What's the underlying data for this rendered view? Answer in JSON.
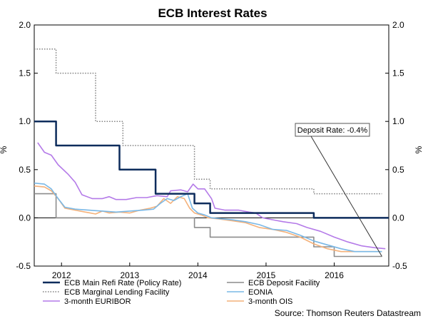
{
  "chart_data": {
    "type": "line",
    "title": "ECB Interest Rates",
    "ylabel_left": "%",
    "ylabel_right": "%",
    "ylim": [
      -0.5,
      2.0
    ],
    "yticks": [
      "2.0",
      "1.5",
      "1.0",
      "0.5",
      "0.0",
      "-0.5"
    ],
    "yticks_right": [
      "2.0",
      "1.5",
      "1.0",
      "0.5",
      "0.0",
      "-0.5"
    ],
    "xlim": [
      2011.6,
      2016.8
    ],
    "xticks": [
      {
        "label": "2012",
        "x": 2012.0
      },
      {
        "label": "2013",
        "x": 2013.0
      },
      {
        "label": "2014",
        "x": 2014.0
      },
      {
        "label": "2015",
        "x": 2015.0
      },
      {
        "label": "2016",
        "x": 2016.0
      }
    ],
    "grid": false,
    "legend_position": "bottom",
    "annotation": {
      "text": "Deposit Rate: -0.4%",
      "x": 2016.7,
      "y": -0.4
    },
    "source": "Source: Thomson Reuters Datastream",
    "series": [
      {
        "name": "ECB Main Refi Rate (Policy Rate)",
        "color": "#0d2c5c",
        "style": "solid-thick",
        "step": true,
        "points": [
          [
            2011.6,
            1.0
          ],
          [
            2011.92,
            1.0
          ],
          [
            2011.92,
            0.75
          ],
          [
            2012.85,
            0.75
          ],
          [
            2012.85,
            0.5
          ],
          [
            2013.38,
            0.5
          ],
          [
            2013.38,
            0.25
          ],
          [
            2013.95,
            0.25
          ],
          [
            2013.95,
            0.15
          ],
          [
            2014.18,
            0.15
          ],
          [
            2014.18,
            0.05
          ],
          [
            2015.7,
            0.05
          ],
          [
            2015.7,
            0.0
          ],
          [
            2016.8,
            0.0
          ]
        ]
      },
      {
        "name": "ECB Marginal Lending Facility",
        "color": "#7f7f7f",
        "style": "dotted",
        "step": true,
        "points": [
          [
            2011.6,
            1.75
          ],
          [
            2011.92,
            1.75
          ],
          [
            2011.92,
            1.5
          ],
          [
            2012.5,
            1.5
          ],
          [
            2012.5,
            1.0
          ],
          [
            2012.9,
            1.0
          ],
          [
            2012.9,
            0.75
          ],
          [
            2013.38,
            0.75
          ],
          [
            2013.38,
            0.75
          ],
          [
            2013.95,
            0.75
          ],
          [
            2013.95,
            0.4
          ],
          [
            2014.18,
            0.4
          ],
          [
            2014.18,
            0.3
          ],
          [
            2015.7,
            0.3
          ],
          [
            2015.7,
            0.25
          ],
          [
            2016.7,
            0.25
          ]
        ]
      },
      {
        "name": "3-month EURIBOR",
        "color": "#b47ae8",
        "style": "solid",
        "points": [
          [
            2011.65,
            0.78
          ],
          [
            2011.75,
            0.68
          ],
          [
            2011.85,
            0.65
          ],
          [
            2011.95,
            0.55
          ],
          [
            2012.1,
            0.45
          ],
          [
            2012.2,
            0.37
          ],
          [
            2012.3,
            0.24
          ],
          [
            2012.45,
            0.2
          ],
          [
            2012.6,
            0.2
          ],
          [
            2012.7,
            0.22
          ],
          [
            2012.8,
            0.19
          ],
          [
            2012.95,
            0.19
          ],
          [
            2013.1,
            0.21
          ],
          [
            2013.25,
            0.21
          ],
          [
            2013.4,
            0.23
          ],
          [
            2013.55,
            0.22
          ],
          [
            2013.6,
            0.28
          ],
          [
            2013.75,
            0.29
          ],
          [
            2013.85,
            0.27
          ],
          [
            2013.93,
            0.35
          ],
          [
            2014.0,
            0.3
          ],
          [
            2014.1,
            0.3
          ],
          [
            2014.2,
            0.2
          ],
          [
            2014.25,
            0.1
          ],
          [
            2014.4,
            0.08
          ],
          [
            2014.6,
            0.08
          ],
          [
            2014.75,
            0.06
          ],
          [
            2014.85,
            0.05
          ],
          [
            2014.95,
            0.0
          ],
          [
            2015.1,
            -0.02
          ],
          [
            2015.25,
            -0.04
          ],
          [
            2015.45,
            -0.06
          ],
          [
            2015.6,
            -0.1
          ],
          [
            2015.8,
            -0.14
          ],
          [
            2016.0,
            -0.2
          ],
          [
            2016.2,
            -0.25
          ],
          [
            2016.4,
            -0.29
          ],
          [
            2016.6,
            -0.31
          ],
          [
            2016.75,
            -0.32
          ]
        ]
      },
      {
        "name": "ECB Deposit Facility",
        "color": "#8c8c8c",
        "style": "solid",
        "step": true,
        "points": [
          [
            2011.6,
            0.25
          ],
          [
            2011.92,
            0.25
          ],
          [
            2011.92,
            0.0
          ],
          [
            2013.95,
            0.0
          ],
          [
            2013.95,
            -0.1
          ],
          [
            2014.18,
            -0.1
          ],
          [
            2014.18,
            -0.2
          ],
          [
            2015.7,
            -0.2
          ],
          [
            2015.7,
            -0.3
          ],
          [
            2016.0,
            -0.3
          ],
          [
            2016.0,
            -0.4
          ],
          [
            2016.7,
            -0.4
          ]
        ]
      },
      {
        "name": "EONIA",
        "color": "#7ab8e6",
        "style": "solid",
        "points": [
          [
            2011.6,
            0.36
          ],
          [
            2011.75,
            0.35
          ],
          [
            2011.85,
            0.3
          ],
          [
            2011.95,
            0.2
          ],
          [
            2012.05,
            0.11
          ],
          [
            2012.2,
            0.09
          ],
          [
            2012.4,
            0.08
          ],
          [
            2012.6,
            0.07
          ],
          [
            2012.8,
            0.06
          ],
          [
            2013.0,
            0.07
          ],
          [
            2013.2,
            0.08
          ],
          [
            2013.35,
            0.09
          ],
          [
            2013.45,
            0.15
          ],
          [
            2013.55,
            0.2
          ],
          [
            2013.65,
            0.18
          ],
          [
            2013.75,
            0.22
          ],
          [
            2013.85,
            0.25
          ],
          [
            2013.92,
            0.1
          ],
          [
            2014.0,
            0.05
          ],
          [
            2014.1,
            0.03
          ],
          [
            2014.2,
            0.0
          ],
          [
            2014.35,
            -0.01
          ],
          [
            2014.5,
            -0.02
          ],
          [
            2014.7,
            -0.04
          ],
          [
            2014.9,
            -0.07
          ],
          [
            2015.1,
            -0.12
          ],
          [
            2015.3,
            -0.13
          ],
          [
            2015.5,
            -0.18
          ],
          [
            2015.7,
            -0.24
          ],
          [
            2015.9,
            -0.28
          ],
          [
            2016.1,
            -0.32
          ],
          [
            2016.3,
            -0.35
          ],
          [
            2016.5,
            -0.35
          ],
          [
            2016.7,
            -0.35
          ]
        ]
      },
      {
        "name": "3-month OIS",
        "color": "#f4b17a",
        "style": "solid",
        "points": [
          [
            2011.6,
            0.33
          ],
          [
            2011.75,
            0.32
          ],
          [
            2011.85,
            0.28
          ],
          [
            2011.95,
            0.2
          ],
          [
            2012.05,
            0.1
          ],
          [
            2012.2,
            0.08
          ],
          [
            2012.35,
            0.06
          ],
          [
            2012.5,
            0.04
          ],
          [
            2012.6,
            0.07
          ],
          [
            2012.7,
            0.05
          ],
          [
            2012.85,
            0.06
          ],
          [
            2013.0,
            0.05
          ],
          [
            2013.15,
            0.08
          ],
          [
            2013.3,
            0.1
          ],
          [
            2013.4,
            0.12
          ],
          [
            2013.5,
            0.2
          ],
          [
            2013.6,
            0.15
          ],
          [
            2013.7,
            0.22
          ],
          [
            2013.8,
            0.2
          ],
          [
            2013.88,
            0.1
          ],
          [
            2013.95,
            0.05
          ],
          [
            2014.05,
            0.03
          ],
          [
            2014.15,
            0.0
          ],
          [
            2014.3,
            -0.01
          ],
          [
            2014.5,
            -0.03
          ],
          [
            2014.7,
            -0.05
          ],
          [
            2014.9,
            -0.1
          ],
          [
            2015.1,
            -0.12
          ],
          [
            2015.3,
            -0.15
          ],
          [
            2015.5,
            -0.2
          ],
          [
            2015.7,
            -0.27
          ],
          [
            2015.9,
            -0.32
          ],
          [
            2016.1,
            -0.35
          ],
          [
            2016.4,
            -0.35
          ],
          [
            2016.7,
            -0.35
          ]
        ]
      }
    ]
  }
}
